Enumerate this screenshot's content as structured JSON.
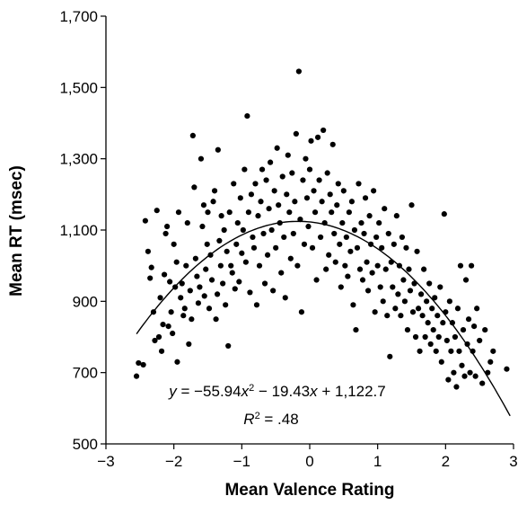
{
  "chart_data": {
    "type": "scatter",
    "title": "",
    "xlabel": "Mean Valence Rating",
    "ylabel": "Mean RT (msec)",
    "xlim": [
      -3,
      3
    ],
    "ylim": [
      500,
      1700
    ],
    "xticks": [
      -3,
      -2,
      -1,
      0,
      1,
      2,
      3
    ],
    "xtick_labels": [
      "−3",
      "−2",
      "−1",
      "0",
      "1",
      "2",
      "3"
    ],
    "yticks": [
      500,
      700,
      900,
      1100,
      1300,
      1500,
      1700
    ],
    "ytick_labels": [
      "500",
      "700",
      "900",
      "1,100",
      "1,300",
      "1,500",
      "1,700"
    ],
    "grid": false,
    "legend": "none",
    "point_color": "#000000",
    "fit": {
      "type": "quadratic",
      "coefficients": {
        "a": -55.94,
        "b": -19.43,
        "c": 1122.7
      },
      "x_range": [
        -2.55,
        2.95
      ],
      "equation_label": "y = −55.94x² − 19.43x + 1,122.7",
      "r2_label": "R² = .48"
    },
    "points": [
      [
        -2.55,
        690
      ],
      [
        -2.52,
        727
      ],
      [
        -2.45,
        722
      ],
      [
        -2.42,
        1126
      ],
      [
        -2.38,
        1040
      ],
      [
        -2.35,
        965
      ],
      [
        -2.33,
        995
      ],
      [
        -2.3,
        870
      ],
      [
        -2.28,
        790
      ],
      [
        -2.25,
        1155
      ],
      [
        -2.22,
        800
      ],
      [
        -2.2,
        910
      ],
      [
        -2.18,
        760
      ],
      [
        -2.16,
        835
      ],
      [
        -2.14,
        975
      ],
      [
        -2.12,
        1090
      ],
      [
        -2.1,
        1110
      ],
      [
        -2.08,
        830
      ],
      [
        -2.06,
        955
      ],
      [
        -2.04,
        870
      ],
      [
        -2.02,
        810
      ],
      [
        -2.0,
        1060
      ],
      [
        -1.98,
        940
      ],
      [
        -1.96,
        1010
      ],
      [
        -1.95,
        730
      ],
      [
        -1.93,
        1150
      ],
      [
        -1.9,
        910
      ],
      [
        -1.88,
        950
      ],
      [
        -1.86,
        860
      ],
      [
        -1.84,
        880
      ],
      [
        -1.82,
        1000
      ],
      [
        -1.8,
        1120
      ],
      [
        -1.78,
        780
      ],
      [
        -1.76,
        930
      ],
      [
        -1.74,
        850
      ],
      [
        -1.72,
        1365
      ],
      [
        -1.7,
        1220
      ],
      [
        -1.68,
        1020
      ],
      [
        -1.66,
        970
      ],
      [
        -1.64,
        895
      ],
      [
        -1.62,
        940
      ],
      [
        -1.6,
        1300
      ],
      [
        -1.58,
        1110
      ],
      [
        -1.56,
        1170
      ],
      [
        -1.55,
        915
      ],
      [
        -1.53,
        990
      ],
      [
        -1.51,
        1060
      ],
      [
        -1.5,
        1150
      ],
      [
        -1.48,
        880
      ],
      [
        -1.46,
        1030
      ],
      [
        -1.44,
        960
      ],
      [
        -1.42,
        1180
      ],
      [
        -1.4,
        1210
      ],
      [
        -1.38,
        850
      ],
      [
        -1.36,
        920
      ],
      [
        -1.35,
        1325
      ],
      [
        -1.33,
        1070
      ],
      [
        -1.31,
        1000
      ],
      [
        -1.3,
        1140
      ],
      [
        -1.28,
        950
      ],
      [
        -1.26,
        1100
      ],
      [
        -1.24,
        890
      ],
      [
        -1.22,
        1040
      ],
      [
        -1.2,
        775
      ],
      [
        -1.18,
        1150
      ],
      [
        -1.16,
        1000
      ],
      [
        -1.14,
        980
      ],
      [
        -1.12,
        1230
      ],
      [
        -1.1,
        935
      ],
      [
        -1.08,
        1060
      ],
      [
        -1.06,
        1120
      ],
      [
        -1.04,
        955
      ],
      [
        -1.02,
        1190
      ],
      [
        -1.0,
        1035
      ],
      [
        -0.98,
        1100
      ],
      [
        -0.96,
        1270
      ],
      [
        -0.94,
        1010
      ],
      [
        -0.92,
        1420
      ],
      [
        -0.9,
        1150
      ],
      [
        -0.88,
        925
      ],
      [
        -0.86,
        1200
      ],
      [
        -0.84,
        1080
      ],
      [
        -0.82,
        1050
      ],
      [
        -0.8,
        1230
      ],
      [
        -0.78,
        890
      ],
      [
        -0.76,
        1140
      ],
      [
        -0.74,
        1000
      ],
      [
        -0.72,
        1180
      ],
      [
        -0.7,
        1270
      ],
      [
        -0.68,
        1090
      ],
      [
        -0.66,
        950
      ],
      [
        -0.64,
        1240
      ],
      [
        -0.62,
        1030
      ],
      [
        -0.6,
        1160
      ],
      [
        -0.58,
        1290
      ],
      [
        -0.56,
        1100
      ],
      [
        -0.54,
        930
      ],
      [
        -0.52,
        1210
      ],
      [
        -0.5,
        1050
      ],
      [
        -0.48,
        1330
      ],
      [
        -0.46,
        1170
      ],
      [
        -0.44,
        1120
      ],
      [
        -0.42,
        980
      ],
      [
        -0.4,
        1250
      ],
      [
        -0.38,
        1080
      ],
      [
        -0.36,
        910
      ],
      [
        -0.34,
        1200
      ],
      [
        -0.32,
        1310
      ],
      [
        -0.3,
        1150
      ],
      [
        -0.28,
        1020
      ],
      [
        -0.26,
        1260
      ],
      [
        -0.24,
        1090
      ],
      [
        -0.22,
        1180
      ],
      [
        -0.2,
        1370
      ],
      [
        -0.18,
        1000
      ],
      [
        -0.16,
        1545
      ],
      [
        -0.14,
        1130
      ],
      [
        -0.12,
        870
      ],
      [
        -0.1,
        1240
      ],
      [
        -0.08,
        1060
      ],
      [
        -0.06,
        1300
      ],
      [
        -0.04,
        1190
      ],
      [
        -0.02,
        1110
      ],
      [
        0.0,
        1270
      ],
      [
        0.02,
        1350
      ],
      [
        0.04,
        1050
      ],
      [
        0.06,
        1210
      ],
      [
        0.08,
        1150
      ],
      [
        0.1,
        960
      ],
      [
        0.12,
        1360
      ],
      [
        0.14,
        1240
      ],
      [
        0.16,
        1080
      ],
      [
        0.18,
        1180
      ],
      [
        0.2,
        1380
      ],
      [
        0.22,
        1120
      ],
      [
        0.24,
        990
      ],
      [
        0.26,
        1260
      ],
      [
        0.28,
        1030
      ],
      [
        0.3,
        1200
      ],
      [
        0.32,
        1150
      ],
      [
        0.34,
        1340
      ],
      [
        0.36,
        1090
      ],
      [
        0.38,
        1010
      ],
      [
        0.4,
        1170
      ],
      [
        0.42,
        1230
      ],
      [
        0.44,
        1060
      ],
      [
        0.46,
        940
      ],
      [
        0.48,
        1120
      ],
      [
        0.5,
        1210
      ],
      [
        0.52,
        1000
      ],
      [
        0.54,
        1080
      ],
      [
        0.56,
        970
      ],
      [
        0.58,
        1150
      ],
      [
        0.6,
        1040
      ],
      [
        0.62,
        1180
      ],
      [
        0.64,
        890
      ],
      [
        0.66,
        1100
      ],
      [
        0.68,
        820
      ],
      [
        0.7,
        1050
      ],
      [
        0.72,
        1230
      ],
      [
        0.74,
        990
      ],
      [
        0.76,
        1120
      ],
      [
        0.78,
        960
      ],
      [
        0.8,
        1090
      ],
      [
        0.82,
        1190
      ],
      [
        0.84,
        1010
      ],
      [
        0.86,
        930
      ],
      [
        0.88,
        1140
      ],
      [
        0.9,
        1060
      ],
      [
        0.92,
        980
      ],
      [
        0.94,
        1210
      ],
      [
        0.96,
        870
      ],
      [
        0.98,
        1080
      ],
      [
        1.0,
        1000
      ],
      [
        1.02,
        1120
      ],
      [
        1.04,
        940
      ],
      [
        1.06,
        1050
      ],
      [
        1.08,
        900
      ],
      [
        1.1,
        1160
      ],
      [
        1.12,
        990
      ],
      [
        1.14,
        860
      ],
      [
        1.16,
        1090
      ],
      [
        1.18,
        745
      ],
      [
        1.2,
        1010
      ],
      [
        1.22,
        940
      ],
      [
        1.24,
        1060
      ],
      [
        1.26,
        880
      ],
      [
        1.28,
        1140
      ],
      [
        1.3,
        920
      ],
      [
        1.32,
        1000
      ],
      [
        1.34,
        860
      ],
      [
        1.36,
        1080
      ],
      [
        1.38,
        960
      ],
      [
        1.4,
        900
      ],
      [
        1.42,
        1050
      ],
      [
        1.44,
        820
      ],
      [
        1.46,
        990
      ],
      [
        1.48,
        930
      ],
      [
        1.5,
        1170
      ],
      [
        1.52,
        870
      ],
      [
        1.54,
        950
      ],
      [
        1.56,
        800
      ],
      [
        1.58,
        1040
      ],
      [
        1.6,
        880
      ],
      [
        1.62,
        760
      ],
      [
        1.64,
        920
      ],
      [
        1.66,
        860
      ],
      [
        1.68,
        990
      ],
      [
        1.7,
        800
      ],
      [
        1.72,
        900
      ],
      [
        1.74,
        840
      ],
      [
        1.76,
        950
      ],
      [
        1.78,
        780
      ],
      [
        1.8,
        880
      ],
      [
        1.82,
        820
      ],
      [
        1.84,
        910
      ],
      [
        1.86,
        760
      ],
      [
        1.88,
        860
      ],
      [
        1.9,
        800
      ],
      [
        1.92,
        940
      ],
      [
        1.94,
        730
      ],
      [
        1.96,
        840
      ],
      [
        1.98,
        1145
      ],
      [
        2.0,
        870
      ],
      [
        2.02,
        790
      ],
      [
        2.04,
        680
      ],
      [
        2.06,
        900
      ],
      [
        2.08,
        760
      ],
      [
        2.1,
        840
      ],
      [
        2.12,
        700
      ],
      [
        2.14,
        800
      ],
      [
        2.16,
        660
      ],
      [
        2.18,
        880
      ],
      [
        2.2,
        760
      ],
      [
        2.22,
        1000
      ],
      [
        2.24,
        720
      ],
      [
        2.26,
        820
      ],
      [
        2.28,
        690
      ],
      [
        2.3,
        960
      ],
      [
        2.32,
        780
      ],
      [
        2.34,
        850
      ],
      [
        2.36,
        700
      ],
      [
        2.38,
        1000
      ],
      [
        2.4,
        760
      ],
      [
        2.42,
        830
      ],
      [
        2.44,
        690
      ],
      [
        2.46,
        880
      ],
      [
        2.5,
        790
      ],
      [
        2.54,
        670
      ],
      [
        2.58,
        820
      ],
      [
        2.62,
        700
      ],
      [
        2.66,
        730
      ],
      [
        2.7,
        760
      ],
      [
        2.9,
        710
      ]
    ]
  }
}
